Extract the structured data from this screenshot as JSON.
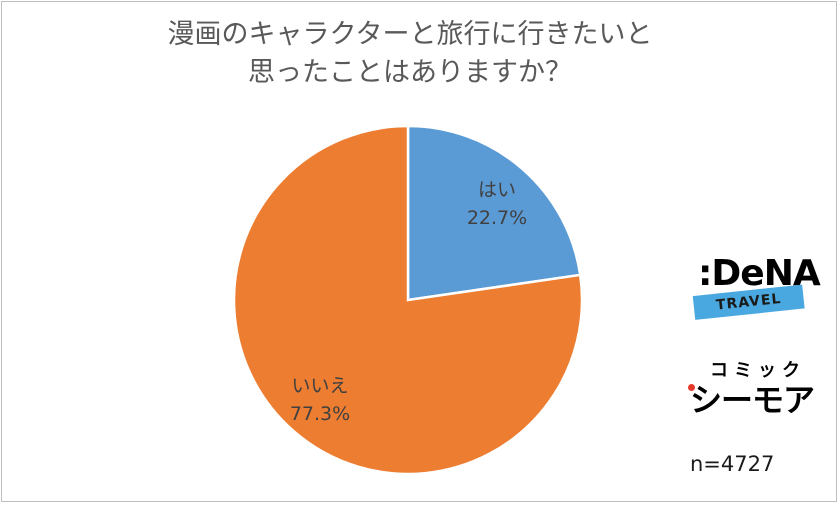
{
  "title_lines": [
    "漫画のキャラクターと旅行に行きたいと",
    "思ったことはありますか？"
  ],
  "chart_data": {
    "type": "pie",
    "title": "漫画のキャラクターと旅行に行きたいと思ったことはありますか？",
    "slices": [
      {
        "label": "はい",
        "value": 22.7,
        "display": "22.7%",
        "color": "#5b9bd5"
      },
      {
        "label": "いいえ",
        "value": 77.3,
        "display": "77.3%",
        "color": "#ed7d31"
      }
    ],
    "start_angle_deg": 0,
    "direction": "clockwise",
    "legend": "none"
  },
  "logos": {
    "dena_text": ":DeNA",
    "dena_sub": "TRAVEL",
    "cmoa_small": "コミック",
    "cmoa_big": "シーモア"
  },
  "sample_size": "n=4727"
}
